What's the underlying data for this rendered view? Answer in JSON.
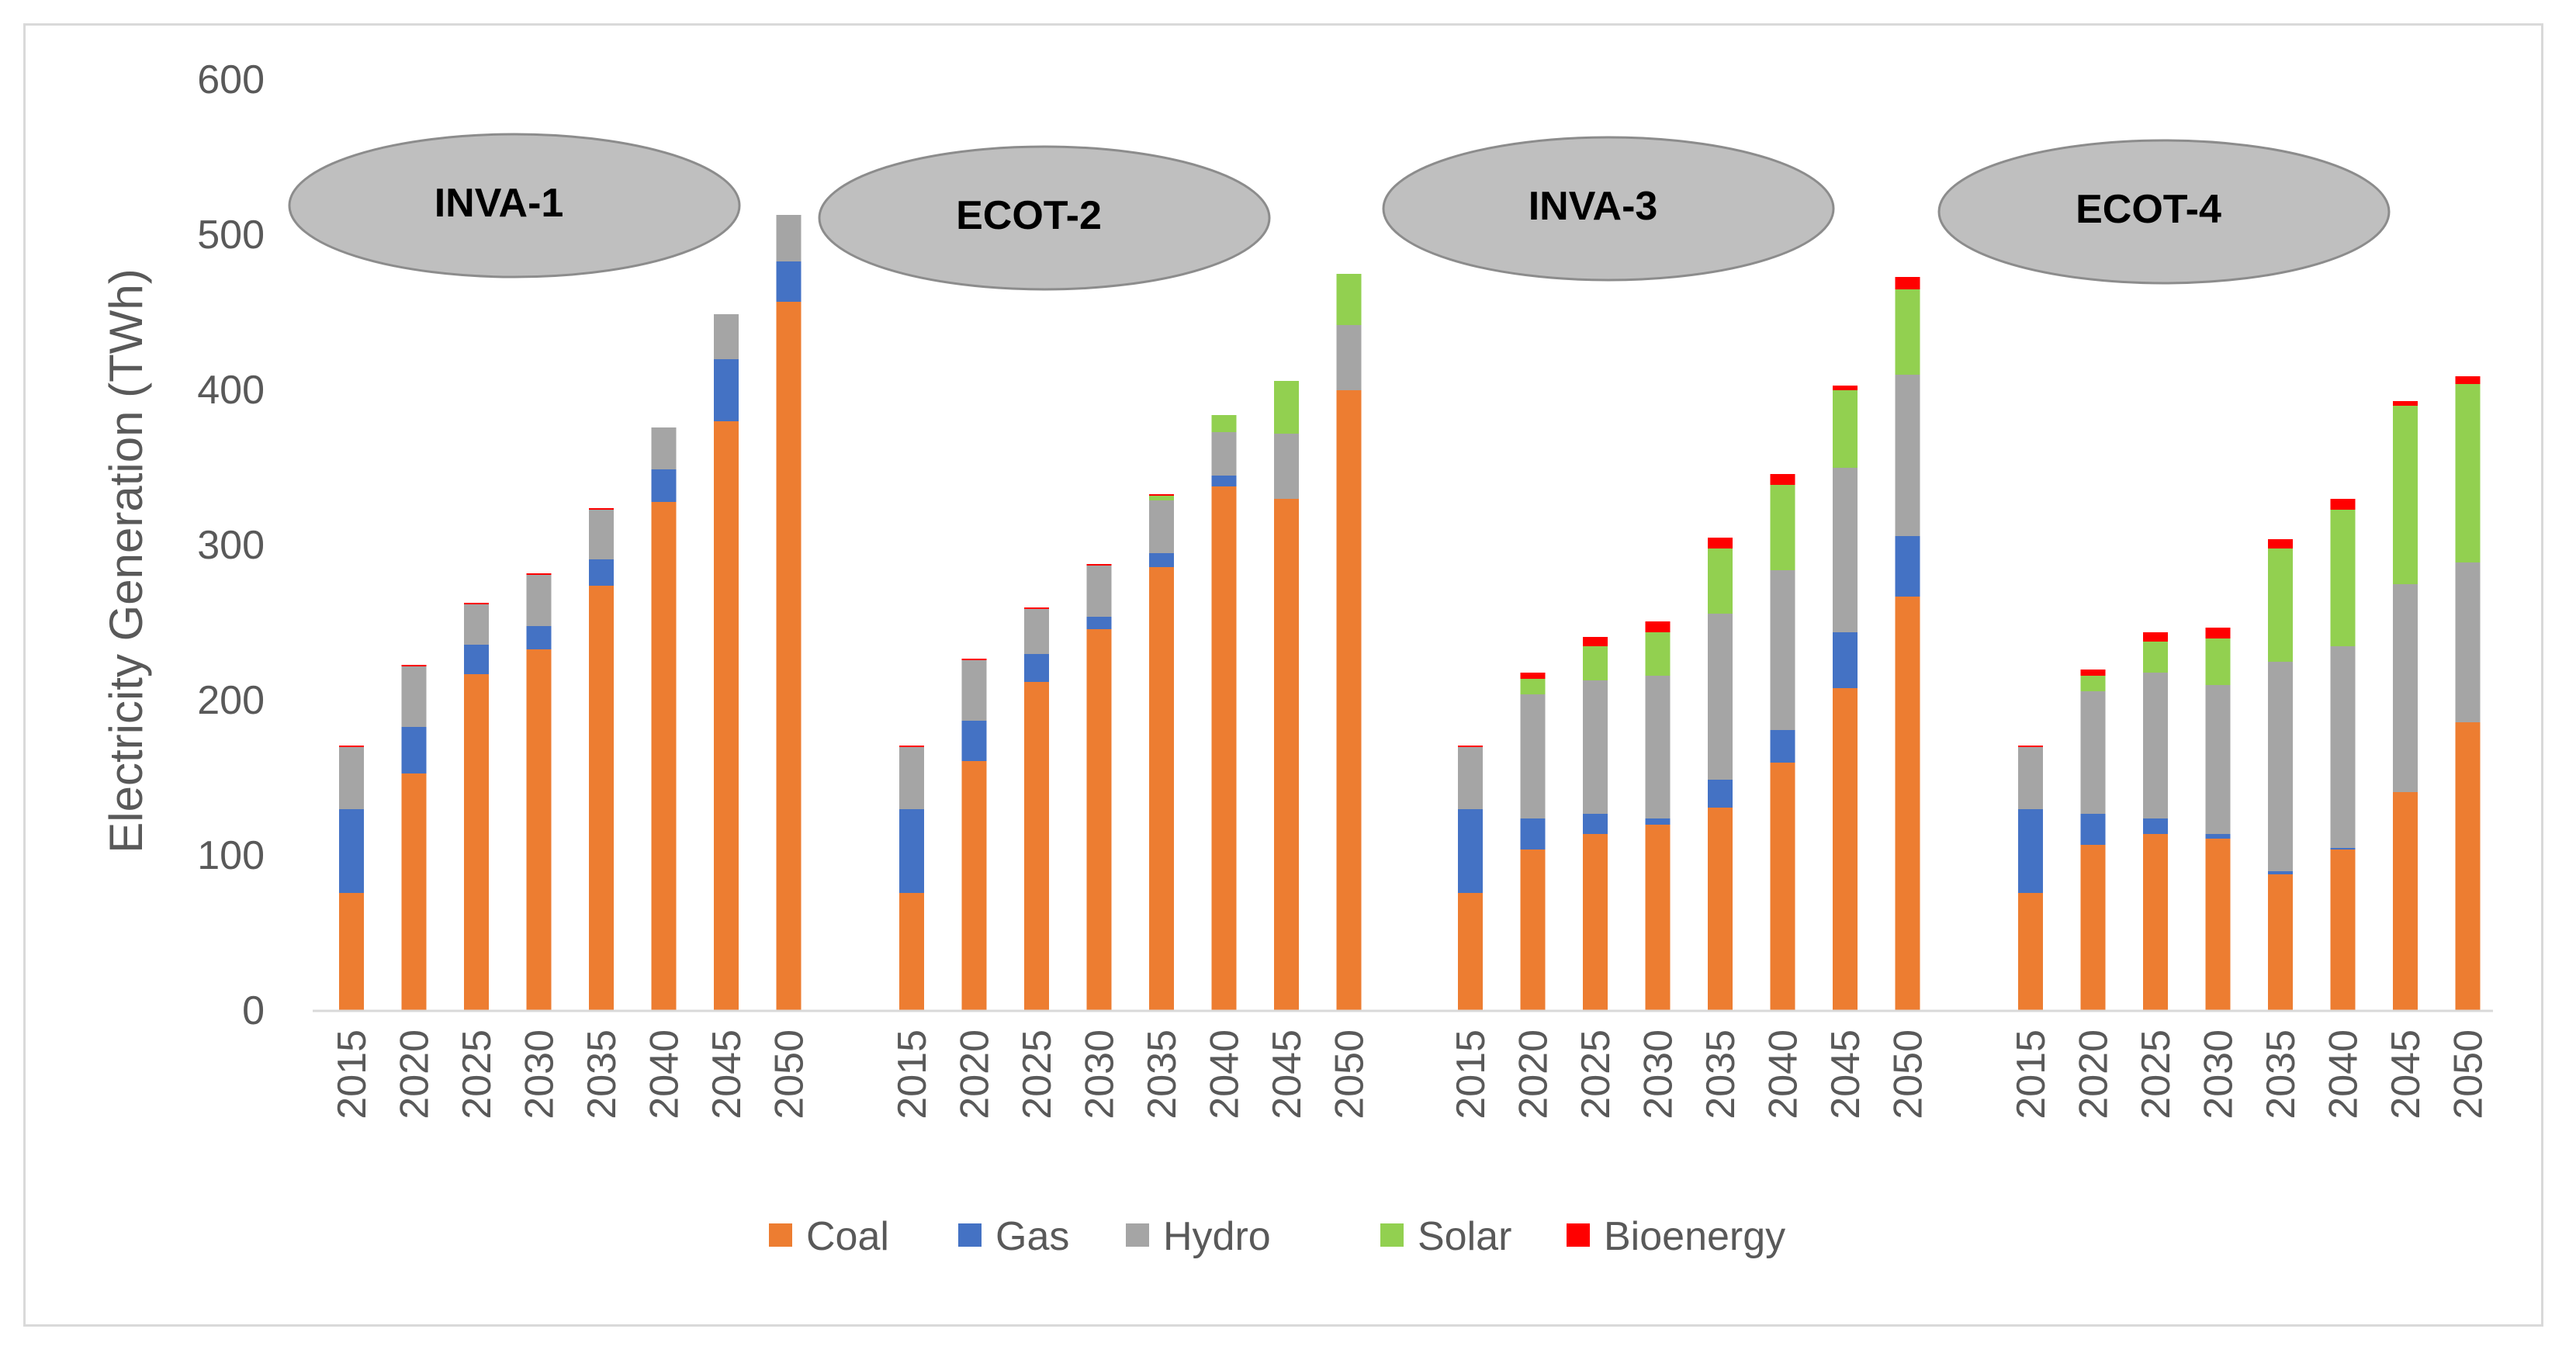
{
  "chart_data": {
    "type": "bar",
    "stacked": true,
    "title": "",
    "xlabel": "",
    "ylabel": "Electricity Generation (TWh)",
    "ylim": [
      0,
      600
    ],
    "yticks": [
      0,
      100,
      200,
      300,
      400,
      500,
      600
    ],
    "grid": false,
    "legend_position": "bottom",
    "years": [
      "2015",
      "2020",
      "2025",
      "2030",
      "2035",
      "2040",
      "2045",
      "2050"
    ],
    "colors": {
      "Coal": "#ed7d31",
      "Gas": "#4472c4",
      "Hydro": "#a5a5a5",
      "Solar": "#92d050",
      "Bioenergy": "#ff0000"
    },
    "series_names": [
      "Coal",
      "Gas",
      "Hydro",
      "Solar",
      "Bioenergy"
    ],
    "scenarios": [
      {
        "name": "INVA-1",
        "series": [
          {
            "name": "Coal",
            "values": [
              76,
              153,
              217,
              233,
              274,
              328,
              380,
              457
            ]
          },
          {
            "name": "Gas",
            "values": [
              54,
              30,
              19,
              15,
              17,
              21,
              40,
              26
            ]
          },
          {
            "name": "Hydro",
            "values": [
              40,
              39,
              26,
              33,
              32,
              27,
              29,
              30
            ]
          },
          {
            "name": "Solar",
            "values": [
              0,
              0,
              0,
              0,
              0,
              0,
              0,
              0
            ]
          },
          {
            "name": "Bioenergy",
            "values": [
              1,
              1,
              1,
              1,
              1,
              0,
              0,
              0
            ]
          }
        ]
      },
      {
        "name": "ECOT-2",
        "series": [
          {
            "name": "Coal",
            "values": [
              76,
              161,
              212,
              246,
              286,
              338,
              330,
              400
            ]
          },
          {
            "name": "Gas",
            "values": [
              54,
              26,
              18,
              8,
              9,
              7,
              0,
              0
            ]
          },
          {
            "name": "Hydro",
            "values": [
              40,
              39,
              29,
              33,
              34,
              28,
              42,
              42
            ]
          },
          {
            "name": "Solar",
            "values": [
              0,
              0,
              0,
              0,
              3,
              11,
              34,
              33
            ]
          },
          {
            "name": "Bioenergy",
            "values": [
              1,
              1,
              1,
              1,
              1,
              0,
              0,
              0
            ]
          }
        ]
      },
      {
        "name": "INVA-3",
        "series": [
          {
            "name": "Coal",
            "values": [
              76,
              104,
              114,
              120,
              131,
              160,
              208,
              267
            ]
          },
          {
            "name": "Gas",
            "values": [
              54,
              20,
              13,
              4,
              18,
              21,
              36,
              39
            ]
          },
          {
            "name": "Hydro",
            "values": [
              40,
              80,
              86,
              92,
              107,
              103,
              106,
              104
            ]
          },
          {
            "name": "Solar",
            "values": [
              0,
              10,
              22,
              28,
              42,
              55,
              50,
              55
            ]
          },
          {
            "name": "Bioenergy",
            "values": [
              1,
              4,
              6,
              7,
              7,
              7,
              3,
              8
            ]
          }
        ]
      },
      {
        "name": "ECOT-4",
        "series": [
          {
            "name": "Coal",
            "values": [
              76,
              107,
              114,
              111,
              88,
              104,
              141,
              186
            ]
          },
          {
            "name": "Gas",
            "values": [
              54,
              20,
              10,
              3,
              2,
              1,
              0,
              0
            ]
          },
          {
            "name": "Hydro",
            "values": [
              40,
              79,
              94,
              96,
              135,
              130,
              134,
              103
            ]
          },
          {
            "name": "Solar",
            "values": [
              0,
              10,
              20,
              30,
              73,
              88,
              115,
              115
            ]
          },
          {
            "name": "Bioenergy",
            "values": [
              1,
              4,
              6,
              7,
              6,
              7,
              3,
              5
            ]
          }
        ]
      }
    ]
  }
}
